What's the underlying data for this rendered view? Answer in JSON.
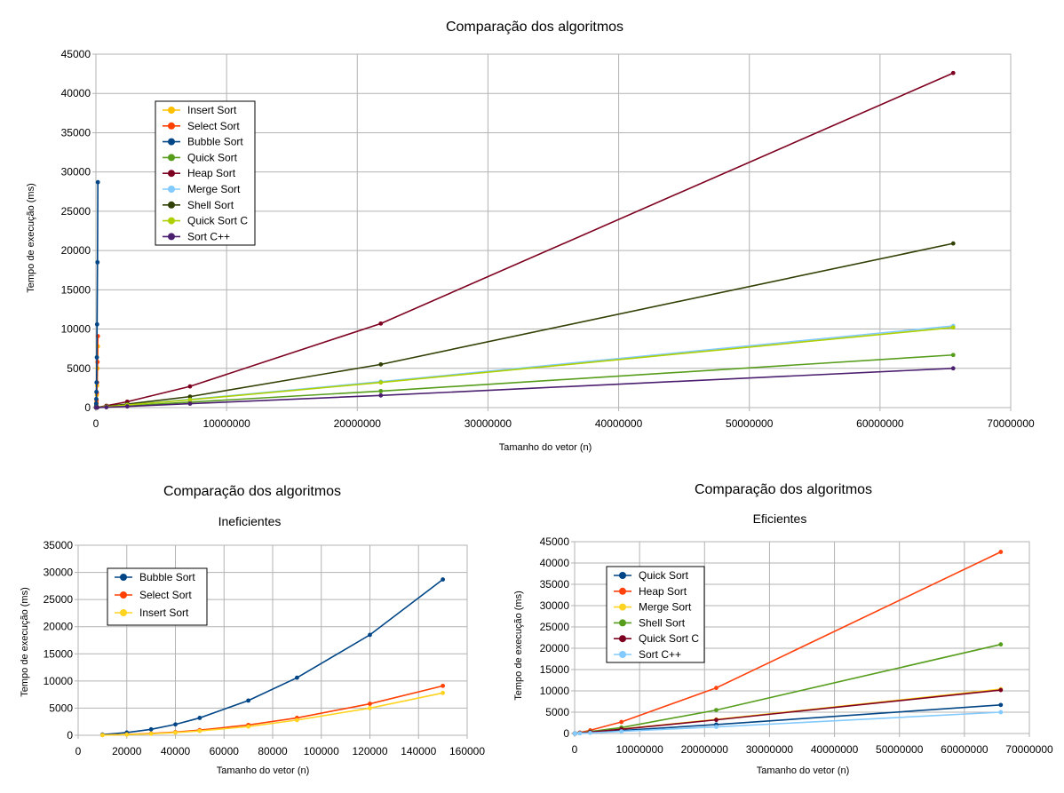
{
  "colors": {
    "insert": "#ffc000",
    "select": "#ff4000",
    "bubble": "#004586",
    "quick": "#579d1c",
    "heap": "#7e0021",
    "merge": "#83caff",
    "shell": "#314004",
    "quickc": "#aecf00",
    "sortcpp": "#4b1f6f",
    "e_quick": "#004586",
    "e_heap": "#ff420e",
    "e_merge": "#ffd320",
    "e_shell": "#579d1c",
    "e_quickc": "#7e0021",
    "e_sortcpp": "#83caff"
  },
  "chart_data": [
    {
      "id": "all",
      "type": "line",
      "title": "Comparação dos algoritmos",
      "subtitle": "",
      "xlabel": "Tamanho do vetor (n)",
      "ylabel": "Tempo de execução (ms)",
      "xlim": [
        0,
        70000000
      ],
      "ylim": [
        0,
        45000
      ],
      "xticks": [
        0,
        10000000,
        20000000,
        30000000,
        40000000,
        50000000,
        60000000,
        70000000
      ],
      "yticks": [
        0,
        5000,
        10000,
        15000,
        20000,
        25000,
        30000,
        35000,
        40000,
        45000
      ],
      "grid": true,
      "legend_position": "top-left",
      "series": [
        {
          "name": "Insert Sort",
          "color_key": "insert",
          "x": [
            10000,
            20000,
            30000,
            40000,
            50000,
            70000,
            90000,
            120000,
            150000
          ],
          "y": [
            30,
            130,
            280,
            500,
            800,
            1600,
            2800,
            5000,
            7800
          ]
        },
        {
          "name": "Select Sort",
          "color_key": "select",
          "x": [
            10000,
            20000,
            30000,
            40000,
            50000,
            70000,
            90000,
            120000,
            150000
          ],
          "y": [
            40,
            150,
            330,
            580,
            950,
            1900,
            3200,
            5800,
            9100
          ]
        },
        {
          "name": "Bubble Sort",
          "color_key": "bubble",
          "x": [
            10000,
            20000,
            30000,
            40000,
            50000,
            70000,
            90000,
            120000,
            150000
          ],
          "y": [
            130,
            500,
            1100,
            2000,
            3200,
            6400,
            10600,
            18500,
            28700
          ]
        },
        {
          "name": "Quick Sort",
          "color_key": "quick",
          "x": [
            10000,
            100000,
            800000,
            2400000,
            7200000,
            21800000,
            65600000
          ],
          "y": [
            1,
            10,
            70,
            220,
            700,
            2100,
            6700
          ]
        },
        {
          "name": "Heap Sort",
          "color_key": "heap",
          "x": [
            10000,
            100000,
            800000,
            2400000,
            7200000,
            21800000,
            65600000
          ],
          "y": [
            3,
            30,
            230,
            750,
            2700,
            10700,
            42600
          ]
        },
        {
          "name": "Merge Sort",
          "color_key": "merge",
          "x": [
            10000,
            100000,
            800000,
            2400000,
            7200000,
            21800000,
            65600000
          ],
          "y": [
            2,
            15,
            120,
            350,
            1050,
            3300,
            10400
          ]
        },
        {
          "name": "Shell Sort",
          "color_key": "shell",
          "x": [
            10000,
            100000,
            800000,
            2400000,
            7200000,
            21800000,
            65600000
          ],
          "y": [
            2,
            20,
            150,
            450,
            1400,
            5500,
            20900
          ]
        },
        {
          "name": "Quick Sort C",
          "color_key": "quickc",
          "x": [
            10000,
            100000,
            800000,
            2400000,
            7200000,
            21800000,
            65600000
          ],
          "y": [
            2,
            15,
            115,
            340,
            1000,
            3200,
            10200
          ]
        },
        {
          "name": "Sort C++",
          "color_key": "sortcpp",
          "x": [
            10000,
            100000,
            800000,
            2400000,
            7200000,
            21800000,
            65600000
          ],
          "y": [
            1,
            8,
            50,
            150,
            500,
            1550,
            5000
          ]
        }
      ]
    },
    {
      "id": "inef",
      "type": "line",
      "title": "Comparação dos algoritmos",
      "subtitle": "Ineficientes",
      "xlabel": "Tamanho do vetor (n)",
      "ylabel": "Tempo de execução (ms)",
      "xlim": [
        0,
        160000
      ],
      "ylim": [
        0,
        35000
      ],
      "xticks": [
        0,
        20000,
        40000,
        60000,
        80000,
        100000,
        120000,
        140000,
        160000
      ],
      "yticks": [
        0,
        5000,
        10000,
        15000,
        20000,
        25000,
        30000,
        35000
      ],
      "grid": true,
      "legend_position": "top-left",
      "series": [
        {
          "name": "Bubble Sort",
          "color_key": "bubble",
          "x": [
            10000,
            20000,
            30000,
            40000,
            50000,
            70000,
            90000,
            120000,
            150000
          ],
          "y": [
            130,
            500,
            1100,
            2000,
            3200,
            6400,
            10600,
            18500,
            28700
          ]
        },
        {
          "name": "Select Sort",
          "color_key": "select",
          "x": [
            10000,
            20000,
            30000,
            40000,
            50000,
            70000,
            90000,
            120000,
            150000
          ],
          "y": [
            40,
            150,
            330,
            580,
            950,
            1900,
            3200,
            5800,
            9100
          ]
        },
        {
          "name": "Insert Sort",
          "color_key": "e_merge",
          "x": [
            10000,
            20000,
            30000,
            40000,
            50000,
            70000,
            90000,
            120000,
            150000
          ],
          "y": [
            30,
            130,
            280,
            500,
            800,
            1600,
            2800,
            5000,
            7800
          ]
        }
      ]
    },
    {
      "id": "efic",
      "type": "line",
      "title": "Comparação dos algoritmos",
      "subtitle": "Eficientes",
      "xlabel": "Tamanho do vetor (n)",
      "ylabel": "Tempo de execução (ms)",
      "xlim": [
        0,
        70000000
      ],
      "ylim": [
        0,
        45000
      ],
      "xticks": [
        0,
        10000000,
        20000000,
        30000000,
        40000000,
        50000000,
        60000000,
        70000000
      ],
      "yticks": [
        0,
        5000,
        10000,
        15000,
        20000,
        25000,
        30000,
        35000,
        40000,
        45000
      ],
      "grid": true,
      "legend_position": "top-left",
      "series": [
        {
          "name": "Quick Sort",
          "color_key": "e_quick",
          "x": [
            10000,
            100000,
            800000,
            2400000,
            7200000,
            21800000,
            65600000
          ],
          "y": [
            1,
            10,
            70,
            220,
            700,
            2100,
            6700
          ]
        },
        {
          "name": "Heap Sort",
          "color_key": "e_heap",
          "x": [
            10000,
            100000,
            800000,
            2400000,
            7200000,
            21800000,
            65600000
          ],
          "y": [
            3,
            30,
            230,
            750,
            2700,
            10700,
            42600
          ]
        },
        {
          "name": "Merge Sort",
          "color_key": "e_merge",
          "x": [
            10000,
            100000,
            800000,
            2400000,
            7200000,
            21800000,
            65600000
          ],
          "y": [
            2,
            15,
            120,
            350,
            1050,
            3300,
            10400
          ]
        },
        {
          "name": "Shell Sort",
          "color_key": "e_shell",
          "x": [
            10000,
            100000,
            800000,
            2400000,
            7200000,
            21800000,
            65600000
          ],
          "y": [
            2,
            20,
            150,
            450,
            1400,
            5500,
            20900
          ]
        },
        {
          "name": "Quick Sort C",
          "color_key": "e_quickc",
          "x": [
            10000,
            100000,
            800000,
            2400000,
            7200000,
            21800000,
            65600000
          ],
          "y": [
            2,
            15,
            115,
            340,
            1000,
            3200,
            10200
          ]
        },
        {
          "name": "Sort C++",
          "color_key": "e_sortcpp",
          "x": [
            10000,
            100000,
            800000,
            2400000,
            7200000,
            21800000,
            65600000
          ],
          "y": [
            1,
            8,
            50,
            150,
            500,
            1550,
            5000
          ]
        }
      ]
    }
  ]
}
